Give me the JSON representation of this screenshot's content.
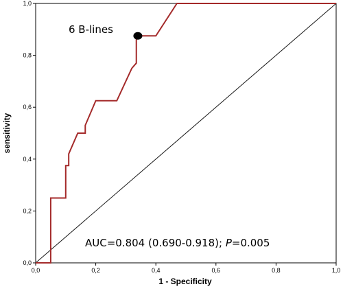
{
  "chart_data": {
    "type": "line",
    "title": "",
    "xlabel": "1 - Specificity",
    "ylabel": "sensitivity",
    "xlim": [
      0,
      1
    ],
    "ylim": [
      0,
      1
    ],
    "x_ticks": [
      "0,0",
      "0,2",
      "0,4",
      "0,6",
      "0,8",
      "1,0"
    ],
    "y_ticks": [
      "0,0",
      "0,2",
      "0,4",
      "0,6",
      "0,8",
      "1,0"
    ],
    "grid": false,
    "colors": {
      "roc": "#a42a2a",
      "reference": "#1a1a1a",
      "marker": "#000000"
    },
    "series": [
      {
        "x": [
          0.0,
          0.05,
          0.05,
          0.1,
          0.1,
          0.11,
          0.11,
          0.14,
          0.14,
          0.165,
          0.165,
          0.2,
          0.2,
          0.27,
          0.32,
          0.32,
          0.335,
          0.335,
          0.4,
          0.4,
          0.47,
          1.0
        ],
        "y": [
          0.0,
          0.0,
          0.25,
          0.25,
          0.375,
          0.375,
          0.42,
          0.5,
          0.5,
          0.5,
          0.53,
          0.625,
          0.625,
          0.625,
          0.75,
          0.75,
          0.77,
          0.875,
          0.875,
          0.875,
          1.0,
          1.0
        ]
      }
    ],
    "reference_line": {
      "x": [
        0,
        1
      ],
      "y": [
        0,
        1
      ]
    },
    "cutoff_point": {
      "x": 0.34,
      "y": 0.875,
      "label": "6 B-lines"
    },
    "annotation": {
      "prefix": "AUC=0.804 (0.690-0.918); ",
      "p_symbol": "P",
      "suffix": "=0.005"
    }
  }
}
